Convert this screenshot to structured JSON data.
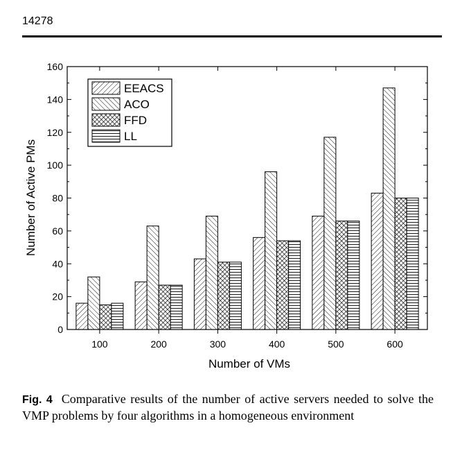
{
  "page": {
    "number": "14278"
  },
  "figure": {
    "label": "Fig. 4",
    "caption": "Comparative results of the number of active servers needed to solve the VMP problems by four algorithms in a homogeneous environment"
  },
  "chart_data": {
    "type": "bar",
    "xlabel": "Number of VMs",
    "ylabel": "Number of Active PMs",
    "categories": [
      "100",
      "200",
      "300",
      "400",
      "500",
      "600"
    ],
    "ylim": [
      0,
      160
    ],
    "yticks": [
      0,
      20,
      40,
      60,
      80,
      100,
      120,
      140,
      160
    ],
    "grid": false,
    "legend_position": "top-left",
    "series": [
      {
        "name": "EEACS",
        "pattern": "diagonal-right",
        "values": [
          16,
          29,
          43,
          56,
          69,
          83
        ]
      },
      {
        "name": "ACO",
        "pattern": "diagonal-left",
        "values": [
          32,
          63,
          69,
          96,
          117,
          147
        ]
      },
      {
        "name": "FFD",
        "pattern": "crosshatch",
        "values": [
          15,
          27,
          41,
          54,
          66,
          80
        ]
      },
      {
        "name": "LL",
        "pattern": "horizontal",
        "values": [
          16,
          27,
          41,
          54,
          66,
          80
        ]
      }
    ]
  }
}
